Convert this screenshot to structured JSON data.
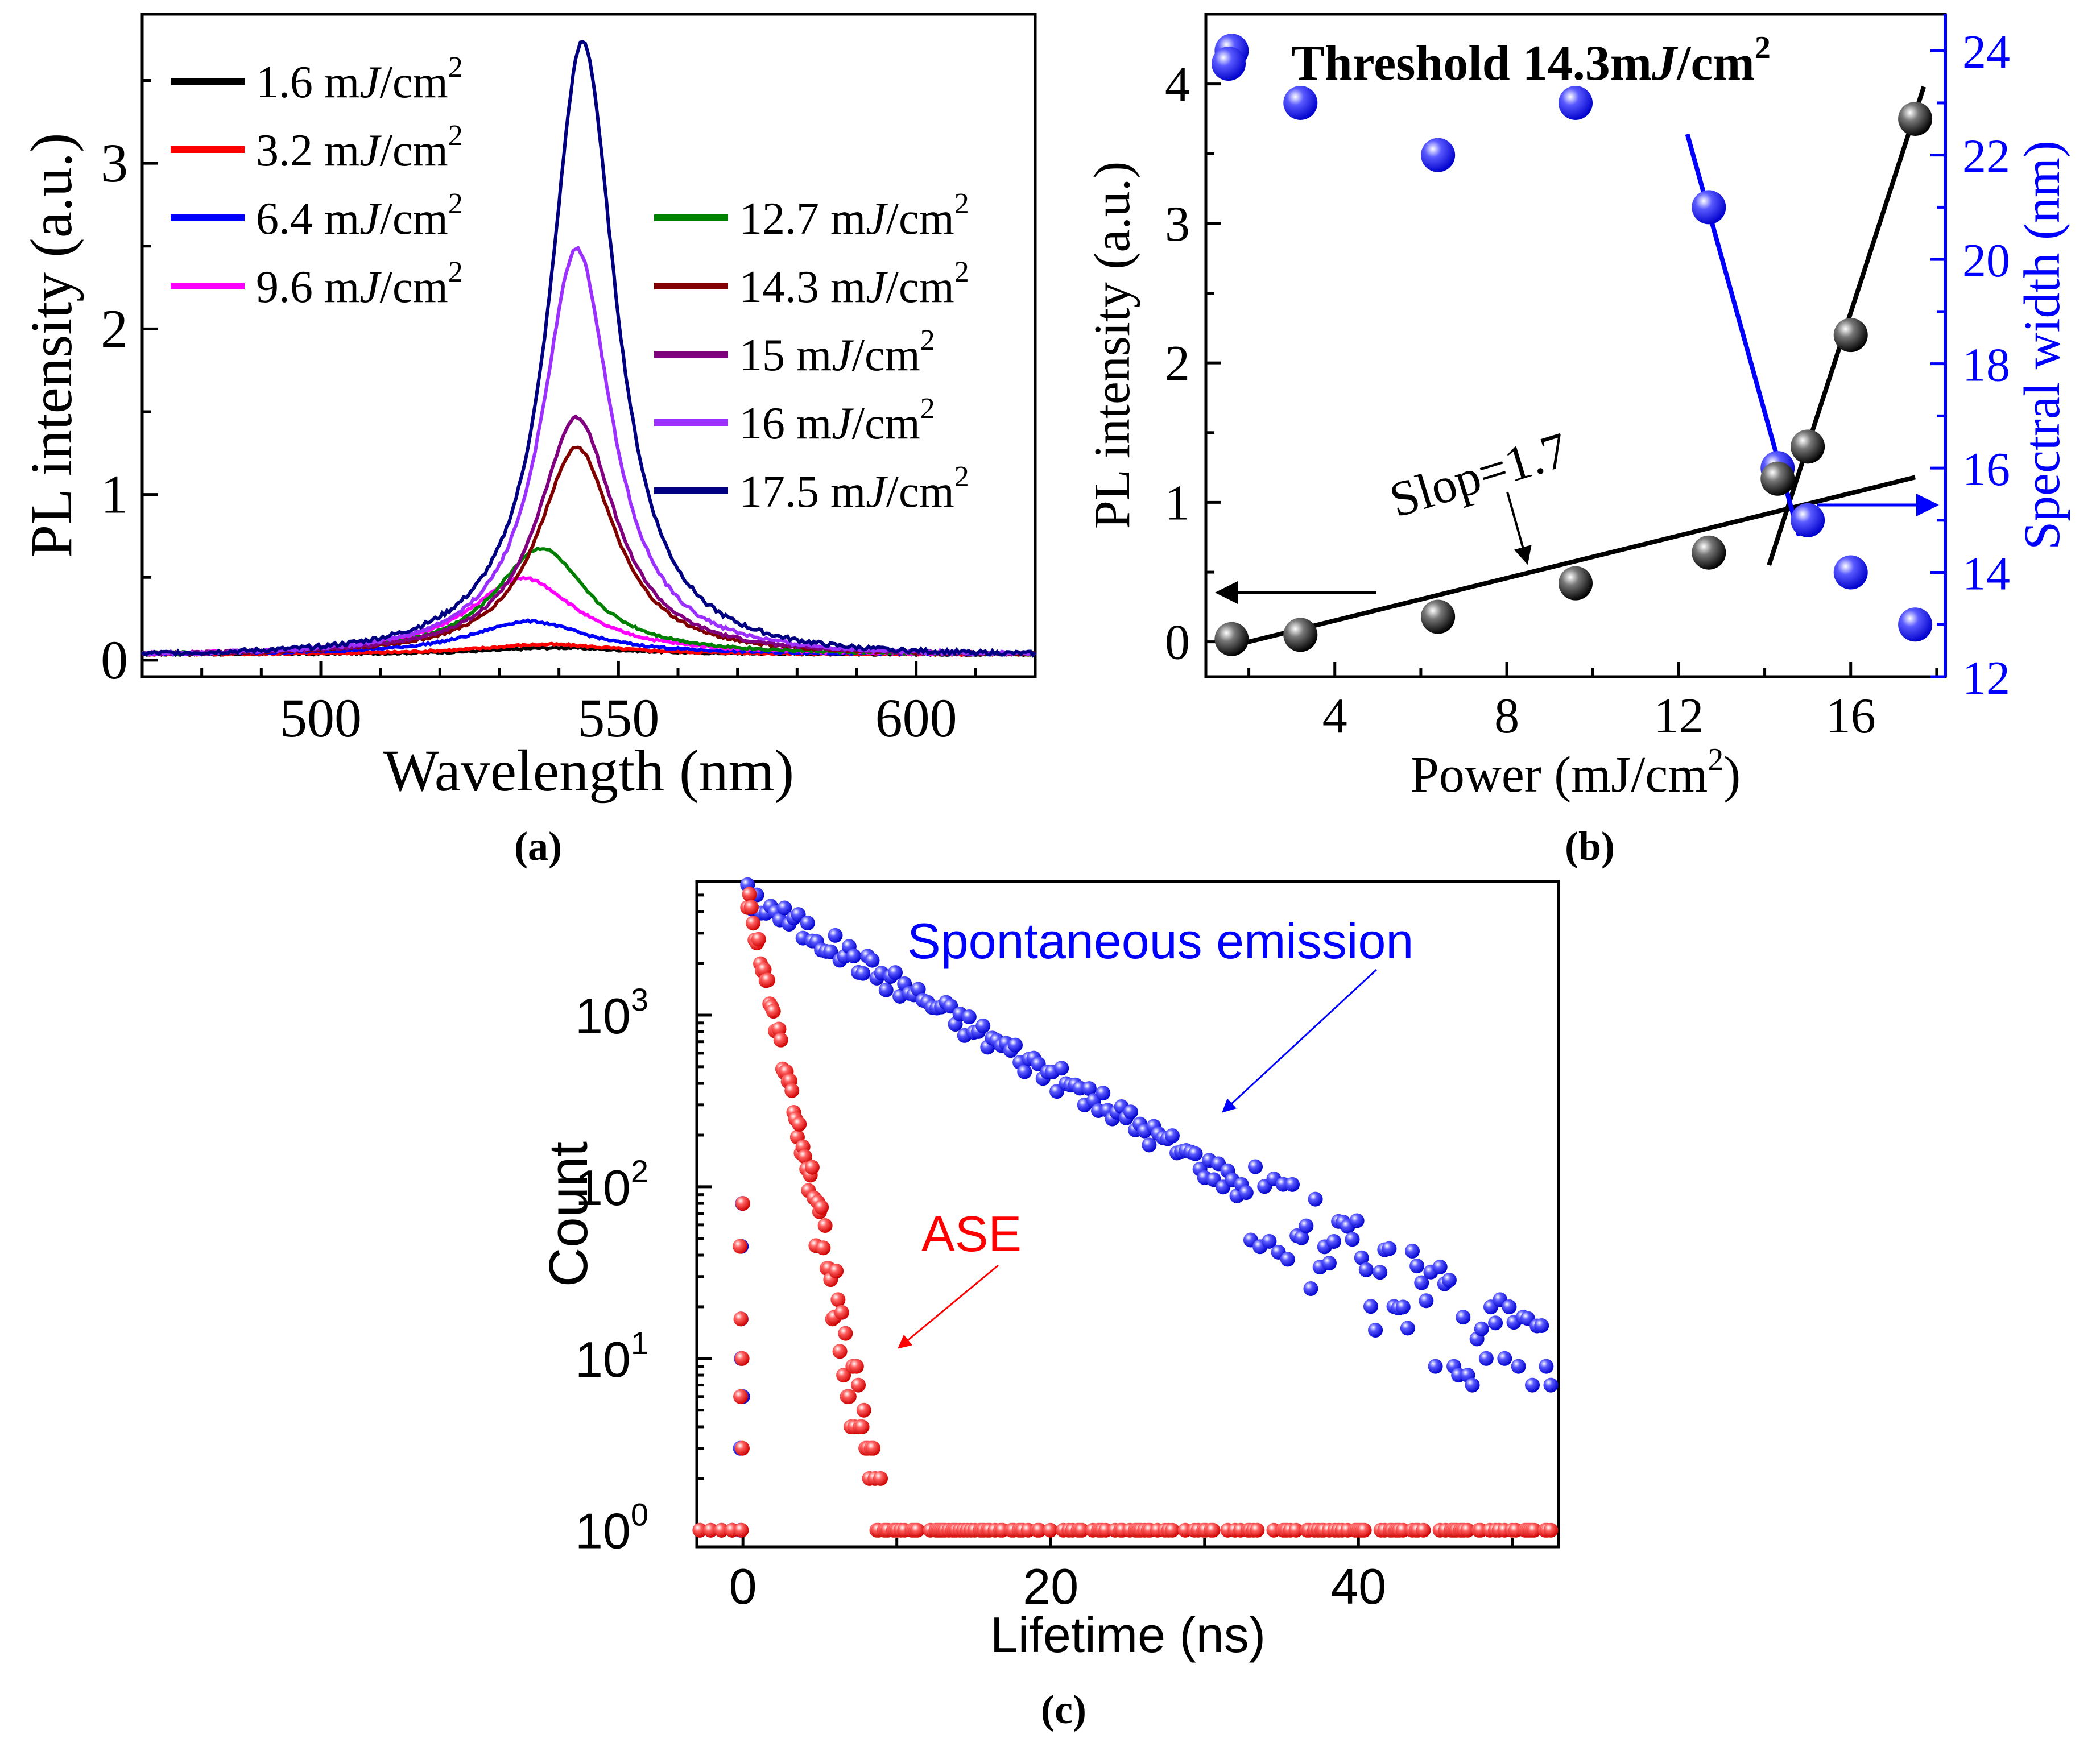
{
  "chart_data": [
    {
      "id": "a",
      "type": "line",
      "panel_label": "(a)",
      "xlabel": "Wavelength (nm)",
      "ylabel": "PL intensity (a.u.)",
      "xlim": [
        470,
        620
      ],
      "ylim": [
        -0.1,
        3.9
      ],
      "xticks": [
        500,
        550,
        600
      ],
      "yticks": [
        0,
        1,
        2,
        3
      ],
      "legend_unit": "mJ/cm2",
      "series": [
        {
          "name": "1.6 mJ/cm2",
          "value": "1.6",
          "color": "#000000",
          "peak_nm": 540,
          "peak": 0.04,
          "width": 18,
          "baseline": 0.035
        },
        {
          "name": "3.2 mJ/cm2",
          "value": "3.2",
          "color": "#ff0000",
          "peak_nm": 538,
          "peak": 0.06,
          "width": 18,
          "baseline": 0.035
        },
        {
          "name": "6.4 mJ/cm2",
          "value": "6.4",
          "color": "#0000ff",
          "peak_nm": 535,
          "peak": 0.2,
          "width": 15,
          "baseline": 0.035
        },
        {
          "name": "9.6 mJ/cm2",
          "value": "9.6",
          "color": "#ff00ff",
          "peak_nm": 534,
          "peak": 0.46,
          "width": 14,
          "baseline": 0.035
        },
        {
          "name": "12.7 mJ/cm2",
          "value": "12.7",
          "color": "#008000",
          "peak_nm": 537,
          "peak": 0.64,
          "width": 12,
          "baseline": 0.035
        },
        {
          "name": "14.3 mJ/cm2",
          "value": "14.3",
          "color": "#800000",
          "peak_nm": 543,
          "peak": 1.25,
          "width": 10,
          "baseline": 0.035
        },
        {
          "name": "15 mJ/cm2",
          "value": "15",
          "color": "#800080",
          "peak_nm": 543,
          "peak": 1.43,
          "width": 10,
          "baseline": 0.035
        },
        {
          "name": "16 mJ/cm2",
          "value": "16",
          "color": "#9b30ff",
          "peak_nm": 543,
          "peak": 2.45,
          "width": 9,
          "baseline": 0.035
        },
        {
          "name": "17.5 mJ/cm2",
          "value": "17.5",
          "color": "#000080",
          "peak_nm": 544,
          "peak": 3.7,
          "width": 8.5,
          "baseline": 0.035
        }
      ]
    },
    {
      "id": "b",
      "type": "scatter",
      "panel_label": "(b)",
      "title": "Threshold 14.3mJ/cm2",
      "title_parts": [
        "Threshold 14.3m",
        "J",
        "/cm",
        "2"
      ],
      "xlabel": "Power (mJ/cm2)",
      "xlabel_parts": [
        "Power (mJ/cm",
        "2",
        ")"
      ],
      "ylabel": "PL intensity (a.u.)",
      "ylabel_right": "Spectral width (nm)",
      "xlim": [
        1,
        18.2
      ],
      "ylim": [
        -0.25,
        4.5
      ],
      "ylim_right": [
        12,
        24.7
      ],
      "xticks": [
        4,
        8,
        12,
        16
      ],
      "yticks": [
        0,
        1,
        2,
        3,
        4
      ],
      "yticks_right": [
        12,
        14,
        16,
        18,
        20,
        22,
        24
      ],
      "annotation": "Slop=1.7",
      "intensity": {
        "x": [
          1.6,
          3.2,
          6.4,
          9.6,
          12.7,
          14.3,
          15,
          16,
          17.5
        ],
        "y": [
          0.02,
          0.05,
          0.18,
          0.42,
          0.64,
          1.17,
          1.4,
          2.2,
          3.75
        ],
        "color": "#000000",
        "fit_low": [
          [
            1.6,
            -0.03
          ],
          [
            17.5,
            1.18
          ]
        ],
        "fit_high": [
          [
            14.1,
            0.55
          ],
          [
            17.7,
            3.98
          ]
        ]
      },
      "spectral_width": {
        "x": [
          1.6,
          3.2,
          6.4,
          9.6,
          12.7,
          14.3,
          15,
          16,
          17.5
        ],
        "y": [
          24,
          23,
          22,
          23,
          21,
          16,
          15,
          14,
          13
        ],
        "color": "#0000ff",
        "fit": [
          [
            12.2,
            22.4
          ],
          [
            14.8,
            14.7
          ]
        ]
      }
    },
    {
      "id": "c",
      "type": "scatter",
      "panel_label": "(c)",
      "xlabel": "Lifetime (ns)",
      "ylabel": "Count",
      "xscale": "linear",
      "yscale": "log",
      "xlim": [
        -3,
        53
      ],
      "ylim": [
        0.8,
        6000
      ],
      "xticks": [
        0,
        20,
        40
      ],
      "yticks": [
        1,
        10,
        100,
        1000
      ],
      "ytick_labels": [
        "10^0",
        "10^1",
        "10^2",
        "10^3"
      ],
      "series": [
        {
          "name": "Spontaneous emission",
          "color": "#0000ff",
          "peak": 5000,
          "tau_ns": 8.2,
          "floor_ns": 33
        },
        {
          "name": "ASE",
          "color": "#ff0000",
          "peak": 5000,
          "tau_ns": 1.05,
          "floor_ns": 8
        }
      ]
    }
  ]
}
